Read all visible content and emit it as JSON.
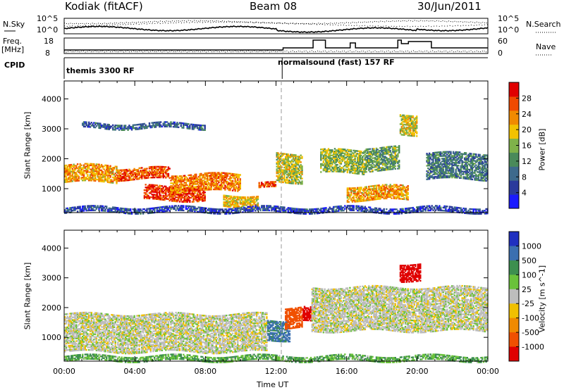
{
  "header": {
    "station": "Kodiak (fitACF)",
    "beam": "Beam 08",
    "date": "30/Jun/2011"
  },
  "top_panel": {
    "nsky_label": "N.Sky",
    "nsearch_label": "N.Search",
    "nsky_ticks": [
      "10^5",
      "10^0"
    ],
    "nsearch_ticks": [
      "10^5",
      "10^0"
    ],
    "freq_label": "Freq.",
    "freq_unit": "[MHz]",
    "freq_ticks": [
      "18",
      "8"
    ],
    "nave_label": "Nave",
    "nave_ticks": [
      "60",
      "0"
    ],
    "cpid_label": "CPID",
    "cpid_segments": [
      "themis 3300 RF",
      "normalsound (fast) 157 RF"
    ]
  },
  "colors": {
    "power": [
      "#1a1aff",
      "#2a3a9c",
      "#3d6a8c",
      "#4a8a5a",
      "#7fb24a",
      "#f2c200",
      "#f08a00",
      "#f04a00",
      "#e00000"
    ],
    "velocity": [
      "#2030c0",
      "#3b6fb0",
      "#3d8f4f",
      "#6ac23a",
      "#bdbdbd",
      "#f0c000",
      "#f08a00",
      "#f05000",
      "#e00000"
    ]
  },
  "chart_data": [
    {
      "type": "heatmap",
      "title": "Power",
      "ylabel": "Slant Range [km]",
      "xlabel": "",
      "x_ticks": [
        "00:00",
        "04:00",
        "08:00",
        "12:00",
        "16:00",
        "20:00",
        "00:00"
      ],
      "y_ticks": [
        "1000",
        "2000",
        "3000",
        "4000"
      ],
      "ylim": [
        200,
        4600
      ],
      "colorbar_label": "Power [dB]",
      "colorbar_ticks": [
        "4",
        "8",
        "12",
        "16",
        "20",
        "24",
        "28"
      ],
      "colorbar_range": [
        0,
        32
      ],
      "bands": [
        {
          "t": [
            0,
            3
          ],
          "r": [
            1200,
            1800
          ],
          "level": 22
        },
        {
          "t": [
            3,
            6
          ],
          "r": [
            1300,
            1700
          ],
          "level": 26
        },
        {
          "t": [
            4.5,
            8
          ],
          "r": [
            600,
            1100
          ],
          "level": 28
        },
        {
          "t": [
            6,
            10
          ],
          "r": [
            900,
            1500
          ],
          "level": 24
        },
        {
          "t": [
            9,
            11
          ],
          "r": [
            400,
            800
          ],
          "level": 20
        },
        {
          "t": [
            11,
            12
          ],
          "r": [
            1000,
            1200
          ],
          "level": 28
        },
        {
          "t": [
            12,
            13.5
          ],
          "r": [
            1200,
            2200
          ],
          "level": 18
        },
        {
          "t": [
            14.5,
            17
          ],
          "r": [
            1500,
            2300
          ],
          "level": 16
        },
        {
          "t": [
            17,
            19
          ],
          "r": [
            1600,
            2400
          ],
          "level": 14
        },
        {
          "t": [
            16,
            19.5
          ],
          "r": [
            600,
            1100
          ],
          "level": 22
        },
        {
          "t": [
            19,
            20
          ],
          "r": [
            2800,
            3500
          ],
          "level": 18
        },
        {
          "t": [
            20.5,
            24
          ],
          "r": [
            1300,
            2200
          ],
          "level": 10
        },
        {
          "t": [
            0,
            24
          ],
          "r": [
            200,
            400
          ],
          "level": 6
        },
        {
          "t": [
            1,
            8
          ],
          "r": [
            3000,
            3200
          ],
          "level": 8
        }
      ]
    },
    {
      "type": "heatmap",
      "title": "Velocity",
      "ylabel": "Slant Range [km]",
      "xlabel": "Time UT",
      "x_ticks": [
        "00:00",
        "04:00",
        "08:00",
        "12:00",
        "16:00",
        "20:00",
        "00:00"
      ],
      "y_ticks": [
        "1000",
        "2000",
        "3000",
        "4000"
      ],
      "ylim": [
        200,
        4600
      ],
      "colorbar_label": "Velocity [m s^-1]",
      "colorbar_ticks": [
        "1000",
        "500",
        "100",
        "25",
        "-25",
        "-100",
        "-500",
        "-1000"
      ],
      "bands": [
        {
          "t": [
            0,
            11.5
          ],
          "r": [
            500,
            1800
          ],
          "v": 0
        },
        {
          "t": [
            11.5,
            12.8
          ],
          "r": [
            900,
            1600
          ],
          "v": 120
        },
        {
          "t": [
            12.5,
            13.5
          ],
          "r": [
            1300,
            2000
          ],
          "v": -400
        },
        {
          "t": [
            13.5,
            14.2
          ],
          "r": [
            1500,
            2000
          ],
          "v": -600
        },
        {
          "t": [
            14,
            24
          ],
          "r": [
            1200,
            2700
          ],
          "v": 0
        },
        {
          "t": [
            19,
            20.2
          ],
          "r": [
            2900,
            3500
          ],
          "v": -700
        },
        {
          "t": [
            0,
            24
          ],
          "r": [
            200,
            400
          ],
          "v": 60
        }
      ]
    }
  ]
}
